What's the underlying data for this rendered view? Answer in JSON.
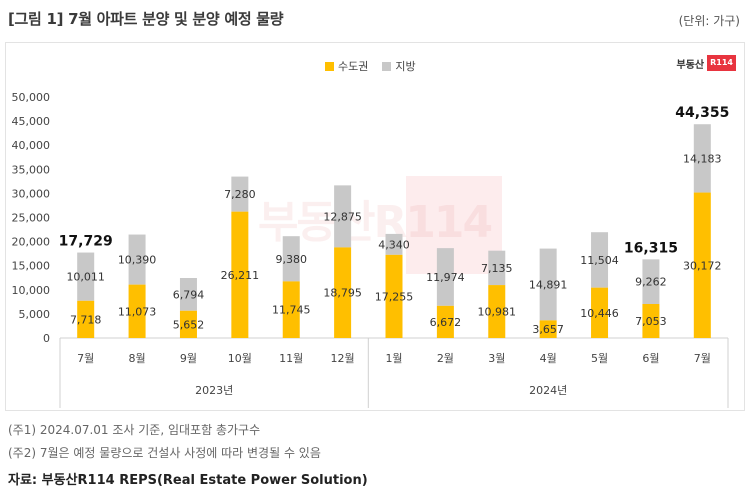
{
  "title": "[그림 1] 7월 아파트 분양 및 분양 예정 물량",
  "unit": "(단위: 가구)",
  "logo": {
    "text": "부동산",
    "badge": "R114"
  },
  "watermark": "부동산R114",
  "colors": {
    "metro": "#FFBF00",
    "local": "#C8C8C8"
  },
  "chart_data": {
    "type": "bar",
    "stacked": true,
    "categories": [
      "7월",
      "8월",
      "9월",
      "10월",
      "11월",
      "12월",
      "1월",
      "2월",
      "3월",
      "4월",
      "5월",
      "6월",
      "7월"
    ],
    "groups": [
      {
        "label": "2023년",
        "from": 0,
        "to": 5
      },
      {
        "label": "2024년",
        "from": 6,
        "to": 12
      }
    ],
    "series": [
      {
        "name": "수도권",
        "values": [
          7718,
          11073,
          5652,
          26211,
          11745,
          18795,
          17255,
          6672,
          10981,
          3657,
          10446,
          7053,
          30172
        ]
      },
      {
        "name": "지방",
        "values": [
          10011,
          10390,
          6794,
          7280,
          9380,
          12875,
          4340,
          11974,
          7135,
          14891,
          11504,
          9262,
          14183
        ]
      }
    ],
    "totals": [
      {
        "index": 0,
        "value": "17,729"
      },
      {
        "index": 11,
        "value": "16,315"
      },
      {
        "index": 12,
        "value": "44,355"
      }
    ],
    "y_ticks": [
      "0",
      "5,000",
      "10,000",
      "15,000",
      "20,000",
      "25,000",
      "30,000",
      "35,000",
      "40,000",
      "45,000",
      "50,000"
    ],
    "ylim": [
      0,
      50000
    ],
    "legend_position": "top-center"
  },
  "notes": [
    "(주1) 2024.07.01 조사 기준, 임대포함 총가구수",
    "(주2) 7월은 예정 물량으로 건설사 사정에 따라 변경될 수 있음"
  ],
  "source": "자료: 부동산R114 REPS(Real Estate Power Solution)"
}
